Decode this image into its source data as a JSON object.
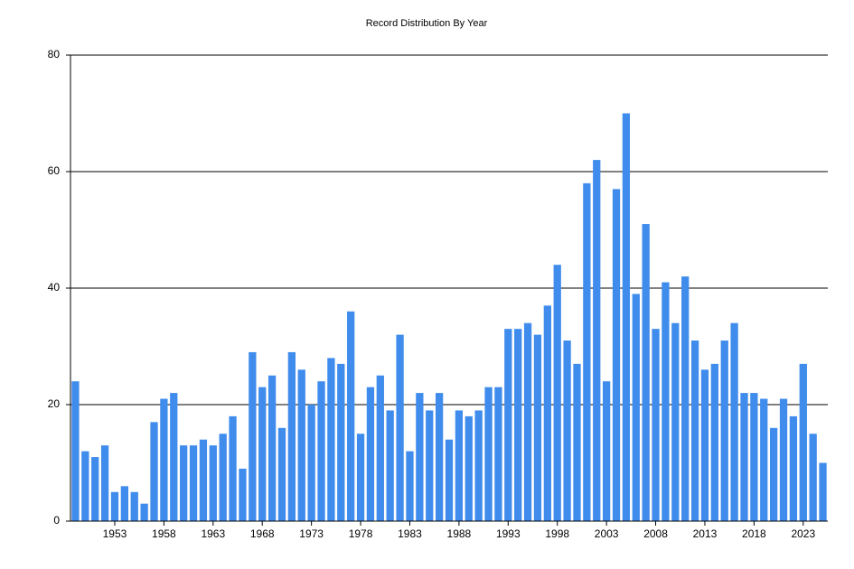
{
  "chart_data": {
    "type": "bar",
    "title": "Record Distribution By Year",
    "categories": [
      null,
      null,
      null,
      null,
      "1953",
      null,
      null,
      null,
      null,
      "1958",
      null,
      null,
      null,
      null,
      "1963",
      null,
      null,
      null,
      null,
      "1968",
      null,
      null,
      null,
      null,
      "1973",
      null,
      null,
      null,
      null,
      "1978",
      null,
      null,
      null,
      null,
      "1983",
      null,
      null,
      null,
      null,
      "1988",
      null,
      null,
      null,
      null,
      "1993",
      null,
      null,
      null,
      null,
      "1998",
      null,
      null,
      null,
      null,
      "2003",
      null,
      null,
      null,
      null,
      "2008",
      null,
      null,
      null,
      null,
      "2013",
      null,
      null,
      null,
      null,
      "2018",
      null,
      null,
      null,
      null,
      "2023",
      null,
      null
    ],
    "values": [
      24,
      12,
      11,
      13,
      5,
      6,
      5,
      3,
      17,
      21,
      22,
      13,
      13,
      14,
      13,
      15,
      18,
      9,
      29,
      23,
      25,
      16,
      29,
      26,
      20,
      24,
      28,
      27,
      36,
      15,
      23,
      25,
      19,
      32,
      12,
      22,
      19,
      22,
      14,
      19,
      18,
      19,
      23,
      23,
      33,
      33,
      34,
      32,
      37,
      44,
      31,
      27,
      58,
      62,
      24,
      57,
      70,
      39,
      51,
      33,
      41,
      34,
      42,
      31,
      26,
      27,
      31,
      34,
      22,
      22,
      21,
      16,
      21,
      18,
      27,
      15,
      10
    ],
    "color": "#3f8ced",
    "ylim": [
      0,
      80
    ],
    "yticks": [
      0,
      20,
      40,
      60,
      80
    ],
    "grid": true
  }
}
